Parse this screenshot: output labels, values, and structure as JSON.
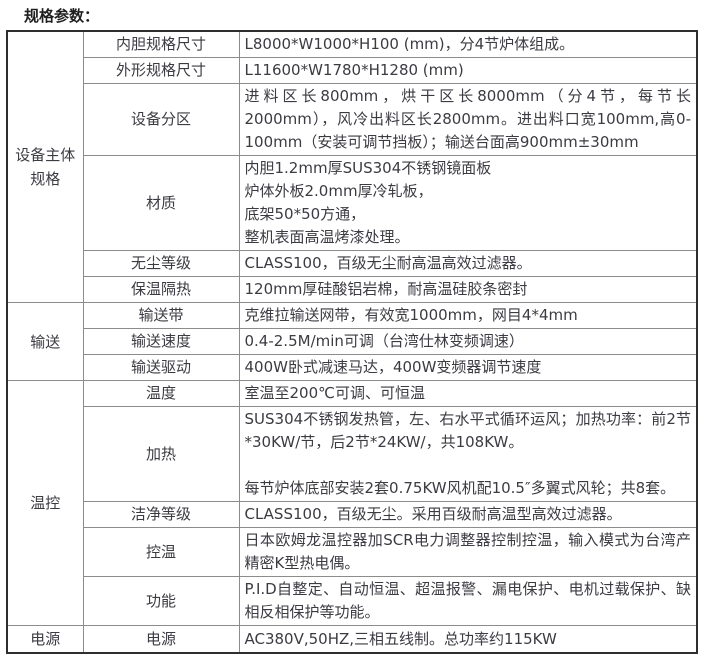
{
  "title": "规格参数：",
  "colors": {
    "text": "#3b3b42",
    "grid_line": "#8c8c8c",
    "outer_border": "#2e2e2e",
    "background": "#ffffff"
  },
  "table": {
    "groups": [
      {
        "name": "设备主体规格",
        "rows": [
          {
            "label": "内胆规格尺寸",
            "value": "L8000*W1000*H100 (mm)，分4节炉体组成。"
          },
          {
            "label": "外形规格尺寸",
            "value": "L11600*W1780*H1280 (mm)"
          },
          {
            "label": "设备分区",
            "value": "进料区长800mm，烘干区长8000mm（分4节，每节长2000mm），风冷出料区长2800mm。进出料口宽100mm,高0-100mm（安装可调节挡板）；输送台面高900mm±30mm"
          },
          {
            "label": "材质",
            "value": "内胆1.2mm厚SUS304不锈钢镜面板\n炉体外板2.0mm厚冷轧板，\n底架50*50方通，\n整机表面高温烤漆处理。"
          },
          {
            "label": "无尘等级",
            "value": "CLASS100，百级无尘耐高温高效过滤器。"
          },
          {
            "label": "保温隔热",
            "value": "120mm厚硅酸铝岩棉，耐高温硅胶条密封"
          }
        ]
      },
      {
        "name": "输送",
        "rows": [
          {
            "label": "输送带",
            "value": "克维拉输送网带，有效宽1000mm，网目4*4mm"
          },
          {
            "label": "输送速度",
            "value": "0.4-2.5M/min可调（台湾仕林变频调速）"
          },
          {
            "label": "输送驱动",
            "value": "400W卧式减速马达，400W变频器调节速度"
          }
        ]
      },
      {
        "name": "温控",
        "rows": [
          {
            "label": "温度",
            "value": "室温至200℃可调、可恒温"
          },
          {
            "label": "加热",
            "value": "SUS304不锈钢发热管，左、右水平式循环运风；加热功率：前2节*30KW/节，后2节*24KW/，共108KW。\n\n每节炉体底部安装2套0.75KW风机配10.5″多翼式风轮；共8套。"
          },
          {
            "label": "洁净等级",
            "value": "CLASS100，百级无尘。采用百级耐高温型高效过滤器。"
          },
          {
            "label": "控温",
            "value": "日本欧姆龙温控器加SCR电力调整器控制控温，输入模式为台湾产精密K型热电偶。"
          },
          {
            "label": "功能",
            "value": "P.I.D自整定、自动恒温、超温报警、漏电保护、电机过载保护、缺相反相保护等功能。"
          }
        ]
      },
      {
        "name": "电源",
        "rows": [
          {
            "label": "电源",
            "value": "AC380V,50HZ,三相五线制。总功率约115KW"
          }
        ]
      }
    ]
  }
}
